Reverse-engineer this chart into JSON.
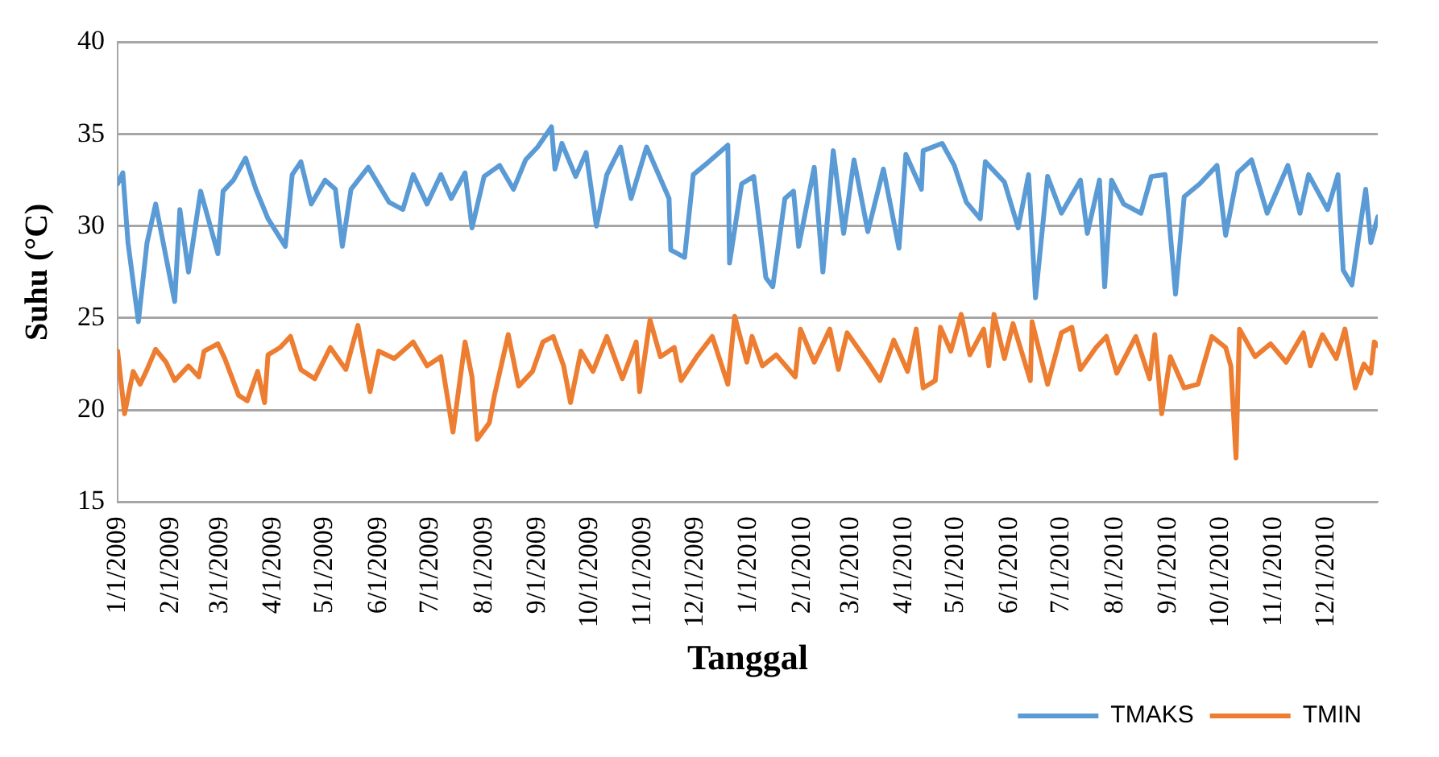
{
  "chart_data": {
    "type": "line",
    "xlabel": "Tanggal",
    "ylabel": "Suhu (°C)",
    "xlim": [
      "2009-01-01",
      "2010-12-31"
    ],
    "xticks": [
      {
        "value": "2009-01-01",
        "label": "1/1/2009"
      },
      {
        "value": "2009-02-01",
        "label": "2/1/2009"
      },
      {
        "value": "2009-03-01",
        "label": "3/1/2009"
      },
      {
        "value": "2009-04-01",
        "label": "4/1/2009"
      },
      {
        "value": "2009-05-01",
        "label": "5/1/2009"
      },
      {
        "value": "2009-06-01",
        "label": "6/1/2009"
      },
      {
        "value": "2009-07-01",
        "label": "7/1/2009"
      },
      {
        "value": "2009-08-01",
        "label": "8/1/2009"
      },
      {
        "value": "2009-09-01",
        "label": "9/1/2009"
      },
      {
        "value": "2009-10-01",
        "label": "10/1/2009"
      },
      {
        "value": "2009-11-01",
        "label": "11/1/2009"
      },
      {
        "value": "2009-12-01",
        "label": "12/1/2009"
      },
      {
        "value": "2010-01-01",
        "label": "1/1/2010"
      },
      {
        "value": "2010-02-01",
        "label": "2/1/2010"
      },
      {
        "value": "2010-03-01",
        "label": "3/1/2010"
      },
      {
        "value": "2010-04-01",
        "label": "4/1/2010"
      },
      {
        "value": "2010-05-01",
        "label": "5/1/2010"
      },
      {
        "value": "2010-06-01",
        "label": "6/1/2010"
      },
      {
        "value": "2010-07-01",
        "label": "7/1/2010"
      },
      {
        "value": "2010-08-01",
        "label": "8/1/2010"
      },
      {
        "value": "2010-09-01",
        "label": "9/1/2010"
      },
      {
        "value": "2010-10-01",
        "label": "10/1/2010"
      },
      {
        "value": "2010-11-01",
        "label": "11/1/2010"
      },
      {
        "value": "2010-12-01",
        "label": "12/1/2010"
      }
    ],
    "ylim": [
      15,
      40
    ],
    "yticks": [
      15,
      20,
      25,
      30,
      35,
      40
    ],
    "grid": "y",
    "legend": "bottom right",
    "marker": "none",
    "line_style": "solid",
    "series": [
      {
        "name": "TMAKS",
        "color": "#5b9bd5",
        "x": [
          "2009-01-01",
          "2009-01-04",
          "2009-01-07",
          "2009-01-13",
          "2009-01-18",
          "2009-01-23",
          "2009-02-03",
          "2009-02-06",
          "2009-02-11",
          "2009-02-18",
          "2009-02-28",
          "2009-03-03",
          "2009-03-09",
          "2009-03-16",
          "2009-03-22",
          "2009-03-29",
          "2009-04-08",
          "2009-04-12",
          "2009-04-17",
          "2009-04-23",
          "2009-05-01",
          "2009-05-07",
          "2009-05-11",
          "2009-05-16",
          "2009-05-26",
          "2009-06-07",
          "2009-06-15",
          "2009-06-21",
          "2009-06-29",
          "2009-07-07",
          "2009-07-13",
          "2009-07-21",
          "2009-07-25",
          "2009-08-01",
          "2009-08-10",
          "2009-08-18",
          "2009-08-25",
          "2009-09-01",
          "2009-09-09",
          "2009-09-11",
          "2009-09-15",
          "2009-09-23",
          "2009-09-29",
          "2009-10-05",
          "2009-10-11",
          "2009-10-19",
          "2009-10-25",
          "2009-11-03",
          "2009-11-16",
          "2009-11-17",
          "2009-11-25",
          "2009-11-30",
          "2009-12-09",
          "2009-12-20",
          "2009-12-21",
          "2009-12-28",
          "2010-01-04",
          "2010-01-11",
          "2010-01-15",
          "2010-01-22",
          "2010-01-27",
          "2010-01-30",
          "2010-02-08",
          "2010-02-13",
          "2010-02-19",
          "2010-02-25",
          "2010-03-03",
          "2010-03-11",
          "2010-03-20",
          "2010-03-29",
          "2010-04-02",
          "2010-04-11",
          "2010-04-12",
          "2010-04-23",
          "2010-04-30",
          "2010-05-07",
          "2010-05-15",
          "2010-05-18",
          "2010-05-29",
          "2010-06-06",
          "2010-06-12",
          "2010-06-16",
          "2010-06-23",
          "2010-07-01",
          "2010-07-12",
          "2010-07-16",
          "2010-07-23",
          "2010-07-26",
          "2010-07-30",
          "2010-08-06",
          "2010-08-16",
          "2010-08-22",
          "2010-08-30",
          "2010-09-05",
          "2010-09-10",
          "2010-09-19",
          "2010-09-29",
          "2010-10-04",
          "2010-10-11",
          "2010-10-19",
          "2010-10-28",
          "2010-11-09",
          "2010-11-16",
          "2010-11-21",
          "2010-12-02",
          "2010-12-08",
          "2010-12-11",
          "2010-12-16",
          "2010-12-21",
          "2010-12-24",
          "2010-12-27",
          "2010-12-31"
        ],
        "values": [
          32.3,
          32.9,
          29.1,
          24.8,
          29.1,
          31.2,
          25.9,
          30.9,
          27.5,
          31.9,
          28.5,
          31.9,
          32.5,
          33.7,
          32.0,
          30.4,
          28.9,
          32.8,
          33.5,
          31.2,
          32.5,
          32.0,
          28.9,
          32.0,
          33.2,
          31.3,
          30.9,
          32.8,
          31.2,
          32.8,
          31.5,
          32.9,
          29.9,
          32.7,
          33.3,
          32.0,
          33.6,
          34.3,
          35.4,
          33.1,
          34.5,
          32.7,
          34.0,
          30.0,
          32.8,
          34.3,
          31.5,
          34.3,
          31.5,
          28.7,
          28.3,
          32.8,
          33.5,
          34.4,
          28.0,
          32.3,
          32.7,
          27.2,
          26.7,
          31.5,
          31.9,
          28.9,
          33.2,
          27.5,
          34.1,
          29.6,
          33.6,
          29.7,
          33.1,
          28.8,
          33.9,
          32.0,
          34.1,
          34.5,
          33.3,
          31.3,
          30.4,
          33.5,
          32.4,
          29.9,
          32.8,
          26.1,
          32.7,
          30.7,
          32.5,
          29.6,
          32.5,
          26.7,
          32.5,
          31.2,
          30.7,
          32.7,
          32.8,
          26.3,
          31.6,
          32.3,
          33.3,
          29.5,
          32.9,
          33.6,
          30.7,
          33.3,
          30.7,
          32.8,
          30.9,
          32.8,
          27.6,
          26.8,
          30.1,
          32.0,
          29.1,
          30.5
        ]
      },
      {
        "name": "TMIN",
        "color": "#ed7d31",
        "x": [
          "2009-01-01",
          "2009-01-05",
          "2009-01-10",
          "2009-01-14",
          "2009-01-18",
          "2009-01-23",
          "2009-01-29",
          "2009-02-03",
          "2009-02-11",
          "2009-02-17",
          "2009-02-20",
          "2009-02-28",
          "2009-03-04",
          "2009-03-12",
          "2009-03-17",
          "2009-03-23",
          "2009-03-27",
          "2009-03-29",
          "2009-04-05",
          "2009-04-11",
          "2009-04-17",
          "2009-04-25",
          "2009-05-04",
          "2009-05-13",
          "2009-05-20",
          "2009-05-27",
          "2009-06-01",
          "2009-06-10",
          "2009-06-21",
          "2009-06-29",
          "2009-07-07",
          "2009-07-14",
          "2009-07-21",
          "2009-07-25",
          "2009-07-28",
          "2009-08-04",
          "2009-08-07",
          "2009-08-15",
          "2009-08-21",
          "2009-08-29",
          "2009-09-04",
          "2009-09-10",
          "2009-09-16",
          "2009-09-20",
          "2009-09-26",
          "2009-10-03",
          "2009-10-11",
          "2009-10-20",
          "2009-10-28",
          "2009-10-30",
          "2009-11-05",
          "2009-11-11",
          "2009-11-19",
          "2009-11-23",
          "2009-12-02",
          "2009-12-11",
          "2009-12-20",
          "2009-12-24",
          "2009-12-31",
          "2010-01-03",
          "2010-01-09",
          "2010-01-17",
          "2010-01-28",
          "2010-01-31",
          "2010-02-08",
          "2010-02-17",
          "2010-02-22",
          "2010-02-27",
          "2010-03-11",
          "2010-03-18",
          "2010-03-26",
          "2010-04-03",
          "2010-04-08",
          "2010-04-12",
          "2010-04-19",
          "2010-04-22",
          "2010-04-28",
          "2010-05-04",
          "2010-05-09",
          "2010-05-17",
          "2010-05-20",
          "2010-05-23",
          "2010-05-29",
          "2010-06-03",
          "2010-06-13",
          "2010-06-14",
          "2010-06-23",
          "2010-07-01",
          "2010-07-07",
          "2010-07-12",
          "2010-07-21",
          "2010-07-27",
          "2010-08-02",
          "2010-08-13",
          "2010-08-21",
          "2010-08-24",
          "2010-08-28",
          "2010-09-02",
          "2010-09-10",
          "2010-09-18",
          "2010-09-26",
          "2010-10-04",
          "2010-10-07",
          "2010-10-10",
          "2010-10-12",
          "2010-10-21",
          "2010-10-30",
          "2010-11-08",
          "2010-11-18",
          "2010-11-22",
          "2010-11-29",
          "2010-12-07",
          "2010-12-12",
          "2010-12-18",
          "2010-12-23",
          "2010-12-27",
          "2010-12-29",
          "2010-12-31"
        ],
        "values": [
          23.2,
          19.8,
          22.1,
          21.4,
          22.2,
          23.3,
          22.6,
          21.6,
          22.4,
          21.8,
          23.2,
          23.6,
          22.8,
          20.8,
          20.5,
          22.1,
          20.4,
          23.0,
          23.4,
          24.0,
          22.2,
          21.7,
          23.4,
          22.2,
          24.6,
          21.0,
          23.2,
          22.8,
          23.7,
          22.4,
          22.9,
          18.8,
          23.7,
          21.8,
          18.4,
          19.3,
          20.8,
          24.1,
          21.3,
          22.1,
          23.7,
          24.0,
          22.4,
          20.4,
          23.2,
          22.1,
          24.0,
          21.7,
          23.7,
          21.0,
          24.9,
          22.9,
          23.4,
          21.6,
          22.9,
          24.0,
          21.4,
          25.1,
          22.6,
          24.0,
          22.4,
          23.0,
          21.8,
          24.4,
          22.6,
          24.4,
          22.2,
          24.2,
          22.6,
          21.6,
          23.8,
          22.1,
          24.4,
          21.2,
          21.6,
          24.5,
          23.2,
          25.2,
          23.0,
          24.4,
          22.4,
          25.2,
          22.8,
          24.7,
          21.6,
          24.8,
          21.4,
          24.2,
          24.5,
          22.2,
          23.4,
          24.0,
          22.0,
          24.0,
          21.7,
          24.1,
          19.8,
          22.9,
          21.2,
          21.4,
          24.0,
          23.4,
          22.4,
          17.4,
          24.4,
          22.9,
          23.6,
          22.6,
          24.2,
          22.4,
          24.1,
          22.8,
          24.4,
          21.2,
          22.5,
          22.0,
          23.7,
          23.5
        ]
      }
    ]
  }
}
